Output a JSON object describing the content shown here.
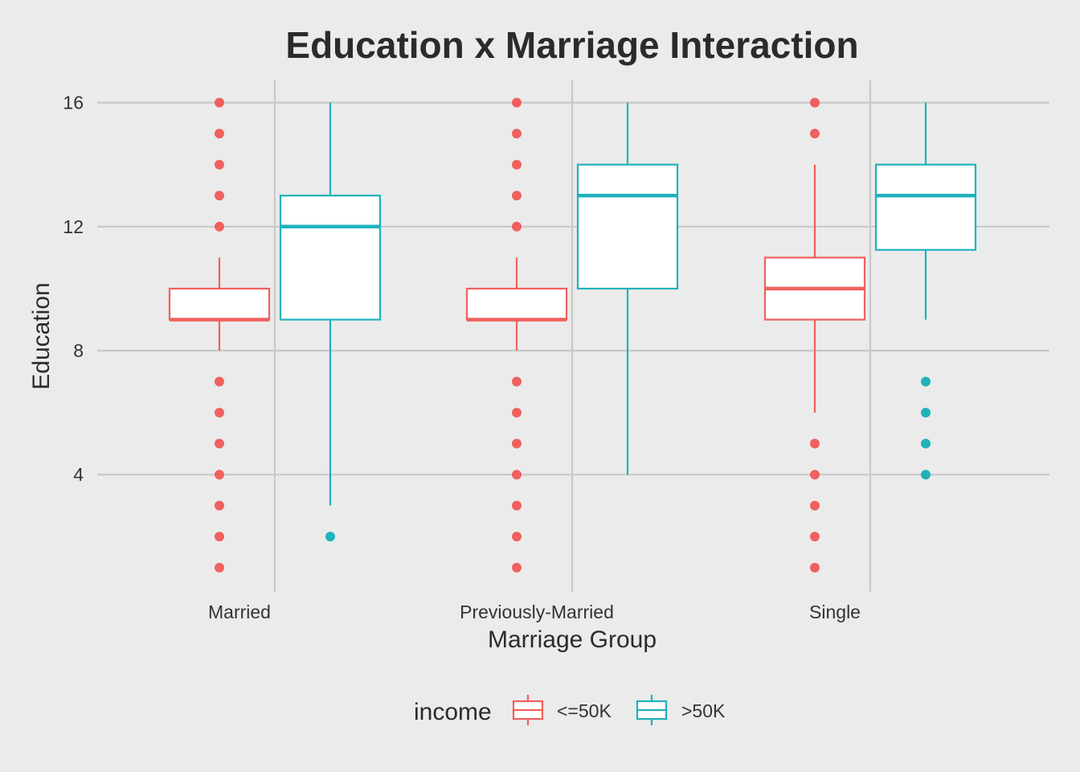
{
  "chart_data": {
    "type": "boxplot",
    "title": "Education x Marriage Interaction",
    "xlabel": "Marriage Group",
    "ylabel": "Education",
    "categories": [
      "Married",
      "Previously-Married",
      "Single"
    ],
    "ylim": [
      0.6,
      16.7
    ],
    "yticks": [
      4,
      8,
      12,
      16
    ],
    "grid": true,
    "legend": {
      "title": "income",
      "position": "bottom",
      "items": [
        {
          "label": "<=50K",
          "color": "#f0605e"
        },
        {
          "label": ">50K",
          "color": "#1fb2bb"
        }
      ]
    },
    "series": [
      {
        "name": "<=50K",
        "color": "#f0605e",
        "boxes": [
          {
            "category": "Married",
            "q1": 9,
            "median": 9,
            "q3": 10,
            "whisker_low": 8,
            "whisker_high": 11,
            "outliers": [
              1,
              2,
              3,
              4,
              5,
              6,
              7,
              12,
              13,
              14,
              15,
              16
            ]
          },
          {
            "category": "Previously-Married",
            "q1": 9,
            "median": 9,
            "q3": 10,
            "whisker_low": 8,
            "whisker_high": 11,
            "outliers": [
              1,
              2,
              3,
              4,
              5,
              6,
              7,
              12,
              13,
              14,
              15,
              16
            ]
          },
          {
            "category": "Single",
            "q1": 9,
            "median": 10,
            "q3": 11,
            "whisker_low": 6,
            "whisker_high": 14,
            "outliers": [
              1,
              2,
              3,
              4,
              5,
              15,
              16
            ]
          }
        ]
      },
      {
        "name": ">50K",
        "color": "#1fb2bb",
        "boxes": [
          {
            "category": "Married",
            "q1": 9,
            "median": 12,
            "q3": 13,
            "whisker_low": 3,
            "whisker_high": 16,
            "outliers": [
              2
            ]
          },
          {
            "category": "Previously-Married",
            "q1": 10,
            "median": 13,
            "q3": 14,
            "whisker_low": 4,
            "whisker_high": 16,
            "outliers": []
          },
          {
            "category": "Single",
            "q1": 11.25,
            "median": 13,
            "q3": 14,
            "whisker_low": 9,
            "whisker_high": 16,
            "outliers": [
              4,
              5,
              6,
              7
            ]
          }
        ]
      }
    ]
  }
}
